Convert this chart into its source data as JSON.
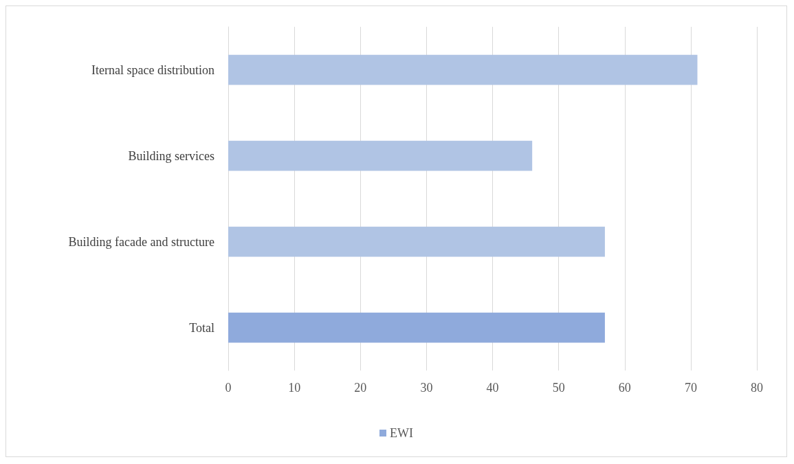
{
  "chart_data": {
    "type": "bar",
    "orientation": "horizontal",
    "categories": [
      "Iternal space distribution",
      "Building services",
      "Building facade and structure",
      "Total"
    ],
    "series": [
      {
        "name": "EWI",
        "color": "#8faadc",
        "colors": [
          "#b0c4e4",
          "#b0c4e4",
          "#b0c4e4",
          "#8faadc"
        ],
        "values": [
          71,
          46,
          57,
          57
        ]
      }
    ],
    "xlim": [
      0,
      80
    ],
    "xticks": [
      0,
      10,
      20,
      30,
      40,
      50,
      60,
      70,
      80
    ],
    "grid": "x",
    "legend": "bottom"
  }
}
